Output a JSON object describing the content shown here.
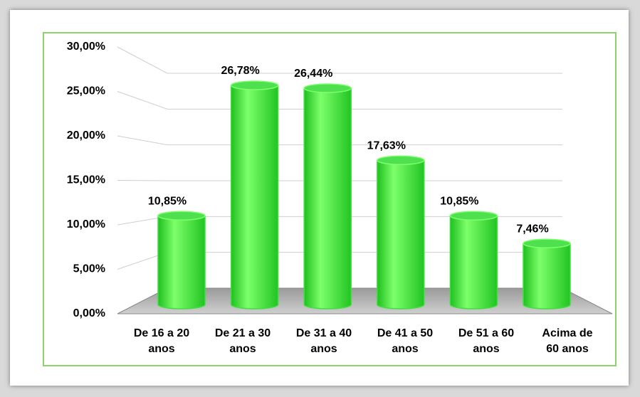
{
  "chart_data": {
    "type": "bar",
    "categories": [
      "De 16 a 20 anos",
      "De 21 a 30 anos",
      "De 31 a 40 anos",
      "De 41 a 50 anos",
      "De 51 a 60 anos",
      "Acima de 60 anos"
    ],
    "values": [
      10.85,
      26.78,
      26.44,
      17.63,
      10.85,
      7.46
    ],
    "value_labels": [
      "10,85%",
      "26,78%",
      "26,44%",
      "17,63%",
      "10,85%",
      "7,46%"
    ],
    "color": "#33e033",
    "ylim": [
      0,
      30
    ],
    "yticks": [
      {
        "value": 0,
        "label": "0,00%"
      },
      {
        "value": 5,
        "label": "5,00%"
      },
      {
        "value": 10,
        "label": "10,00%"
      },
      {
        "value": 15,
        "label": "15,00%"
      },
      {
        "value": 20,
        "label": "20,00%"
      },
      {
        "value": 25,
        "label": "25,00%"
      },
      {
        "value": 30,
        "label": "30,00%"
      }
    ],
    "grid": true
  }
}
